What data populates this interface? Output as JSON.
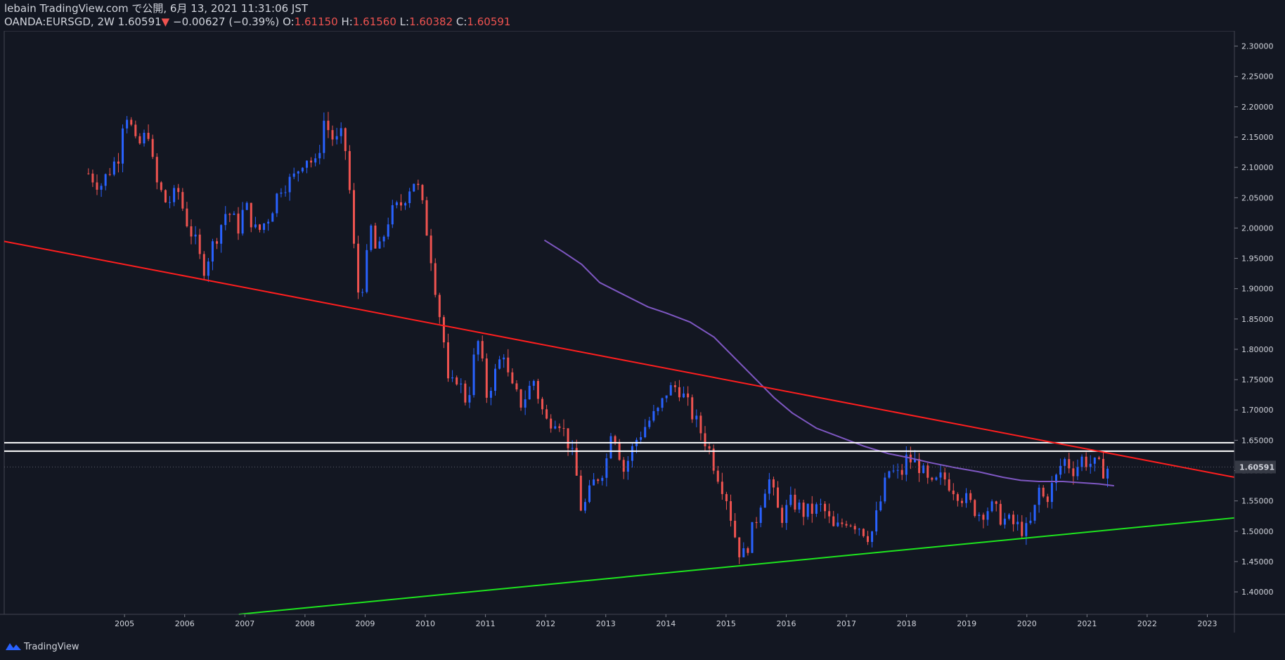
{
  "header": {
    "publisher": "lebain TradingView.com で公開, 6月 13, 2021 11:31:06 JST",
    "symbol": "OANDA:EURSGD, 2W",
    "last": "1.60591",
    "change_arrow": "▼",
    "change": "−0.00627 (−0.39%)",
    "open_label": "O:",
    "open": "1.61150",
    "high_label": "H:",
    "high": "1.61560",
    "low_label": "L:",
    "low": "1.60382",
    "close_label": "C:",
    "close": "1.60591"
  },
  "footer": {
    "brand": "TradingView",
    "logo_icon": "tradingview-logo-icon"
  },
  "colors": {
    "up": "#2962ff",
    "down": "#ef5350",
    "bg": "#131722",
    "resistance": "#ff1e1e",
    "support": "#1ee61e",
    "ma": "#7e57c2",
    "hline": "#ffffff"
  },
  "chart_data": {
    "type": "candlestick",
    "x_ticks": [
      "2005",
      "2006",
      "2007",
      "2008",
      "2009",
      "2010",
      "2011",
      "2012",
      "2013",
      "2014",
      "2015",
      "2016",
      "2017",
      "2018",
      "2019",
      "2020",
      "2021",
      "2022",
      "2023"
    ],
    "y_ticks": [
      "2.30000",
      "2.25000",
      "2.20000",
      "2.15000",
      "2.10000",
      "2.05000",
      "2.00000",
      "1.95000",
      "1.90000",
      "1.85000",
      "1.80000",
      "1.75000",
      "1.70000",
      "1.65000",
      "1.60000",
      "1.55000",
      "1.50000",
      "1.45000",
      "1.40000"
    ],
    "ylim": [
      1.363,
      2.325
    ],
    "xlim": [
      2003.0,
      2023.45
    ],
    "last_price_label": "1.60591",
    "last_price": 1.60591,
    "price_path": [
      [
        2004.4,
        2.09
      ],
      [
        2004.6,
        2.07
      ],
      [
        2004.9,
        2.12
      ],
      [
        2005.0,
        2.2
      ],
      [
        2005.1,
        2.17
      ],
      [
        2005.2,
        2.13
      ],
      [
        2005.4,
        2.16
      ],
      [
        2005.5,
        2.08
      ],
      [
        2005.7,
        2.04
      ],
      [
        2005.9,
        2.06
      ],
      [
        2006.0,
        2.02
      ],
      [
        2006.2,
        1.97
      ],
      [
        2006.3,
        1.93
      ],
      [
        2006.5,
        1.98
      ],
      [
        2006.7,
        2.03
      ],
      [
        2006.9,
        2.0
      ],
      [
        2007.0,
        2.04
      ],
      [
        2007.2,
        1.99
      ],
      [
        2007.4,
        2.02
      ],
      [
        2007.6,
        2.07
      ],
      [
        2007.8,
        2.08
      ],
      [
        2008.0,
        2.12
      ],
      [
        2008.2,
        2.1
      ],
      [
        2008.3,
        2.18
      ],
      [
        2008.5,
        2.14
      ],
      [
        2008.6,
        2.15
      ],
      [
        2008.7,
        2.12
      ],
      [
        2008.8,
        1.98
      ],
      [
        2008.9,
        1.88
      ],
      [
        2009.0,
        1.93
      ],
      [
        2009.1,
        2.0
      ],
      [
        2009.2,
        1.95
      ],
      [
        2009.4,
        2.02
      ],
      [
        2009.6,
        2.04
      ],
      [
        2009.7,
        2.06
      ],
      [
        2009.8,
        2.08
      ],
      [
        2009.9,
        2.06
      ],
      [
        2010.0,
        2.01
      ],
      [
        2010.1,
        1.95
      ],
      [
        2010.2,
        1.88
      ],
      [
        2010.3,
        1.82
      ],
      [
        2010.4,
        1.72
      ],
      [
        2010.5,
        1.76
      ],
      [
        2010.7,
        1.71
      ],
      [
        2010.8,
        1.78
      ],
      [
        2010.9,
        1.82
      ],
      [
        2011.0,
        1.72
      ],
      [
        2011.2,
        1.77
      ],
      [
        2011.3,
        1.8
      ],
      [
        2011.4,
        1.74
      ],
      [
        2011.6,
        1.71
      ],
      [
        2011.8,
        1.75
      ],
      [
        2012.0,
        1.68
      ],
      [
        2012.2,
        1.69
      ],
      [
        2012.4,
        1.64
      ],
      [
        2012.5,
        1.6
      ],
      [
        2012.6,
        1.53
      ],
      [
        2012.8,
        1.58
      ],
      [
        2013.0,
        1.61
      ],
      [
        2013.1,
        1.68
      ],
      [
        2013.3,
        1.6
      ],
      [
        2013.5,
        1.65
      ],
      [
        2013.7,
        1.68
      ],
      [
        2013.9,
        1.7
      ],
      [
        2014.0,
        1.73
      ],
      [
        2014.2,
        1.74
      ],
      [
        2014.3,
        1.72
      ],
      [
        2014.5,
        1.68
      ],
      [
        2014.7,
        1.64
      ],
      [
        2014.8,
        1.61
      ],
      [
        2015.0,
        1.56
      ],
      [
        2015.2,
        1.47
      ],
      [
        2015.3,
        1.46
      ],
      [
        2015.5,
        1.52
      ],
      [
        2015.6,
        1.56
      ],
      [
        2015.7,
        1.59
      ],
      [
        2015.9,
        1.52
      ],
      [
        2016.1,
        1.55
      ],
      [
        2016.3,
        1.53
      ],
      [
        2016.6,
        1.54
      ],
      [
        2016.8,
        1.5
      ],
      [
        2017.0,
        1.52
      ],
      [
        2017.2,
        1.51
      ],
      [
        2017.4,
        1.49
      ],
      [
        2017.6,
        1.56
      ],
      [
        2017.7,
        1.6
      ],
      [
        2017.9,
        1.59
      ],
      [
        2018.0,
        1.62
      ],
      [
        2018.2,
        1.61
      ],
      [
        2018.4,
        1.57
      ],
      [
        2018.6,
        1.59
      ],
      [
        2018.8,
        1.57
      ],
      [
        2019.0,
        1.55
      ],
      [
        2019.2,
        1.53
      ],
      [
        2019.4,
        1.54
      ],
      [
        2019.6,
        1.52
      ],
      [
        2019.8,
        1.51
      ],
      [
        2020.0,
        1.5
      ],
      [
        2020.1,
        1.52
      ],
      [
        2020.2,
        1.57
      ],
      [
        2020.3,
        1.55
      ],
      [
        2020.5,
        1.59
      ],
      [
        2020.6,
        1.62
      ],
      [
        2020.8,
        1.6
      ],
      [
        2020.9,
        1.62
      ],
      [
        2021.1,
        1.61
      ],
      [
        2021.3,
        1.6
      ],
      [
        2021.4,
        1.61
      ]
    ],
    "moving_average": [
      [
        2011.98,
        1.98
      ],
      [
        2012.3,
        1.96
      ],
      [
        2012.6,
        1.94
      ],
      [
        2012.9,
        1.91
      ],
      [
        2013.3,
        1.89
      ],
      [
        2013.7,
        1.87
      ],
      [
        2014.0,
        1.86
      ],
      [
        2014.4,
        1.845
      ],
      [
        2014.8,
        1.82
      ],
      [
        2015.1,
        1.79
      ],
      [
        2015.5,
        1.75
      ],
      [
        2015.8,
        1.72
      ],
      [
        2016.1,
        1.695
      ],
      [
        2016.5,
        1.67
      ],
      [
        2016.9,
        1.655
      ],
      [
        2017.3,
        1.64
      ],
      [
        2017.7,
        1.628
      ],
      [
        2018.0,
        1.622
      ],
      [
        2018.4,
        1.613
      ],
      [
        2018.8,
        1.605
      ],
      [
        2019.2,
        1.598
      ],
      [
        2019.6,
        1.589
      ],
      [
        2019.9,
        1.584
      ],
      [
        2020.2,
        1.582
      ],
      [
        2020.6,
        1.582
      ],
      [
        2020.9,
        1.58
      ],
      [
        2021.2,
        1.578
      ],
      [
        2021.45,
        1.575
      ]
    ],
    "trendlines": [
      {
        "name": "resistance",
        "x1": 2003.0,
        "y1": 1.978,
        "x2": 2023.45,
        "y2": 1.589
      },
      {
        "name": "support",
        "x1": 2006.9,
        "y1": 1.363,
        "x2": 2023.45,
        "y2": 1.522
      }
    ],
    "horizontal_lines": [
      1.646,
      1.632
    ]
  }
}
